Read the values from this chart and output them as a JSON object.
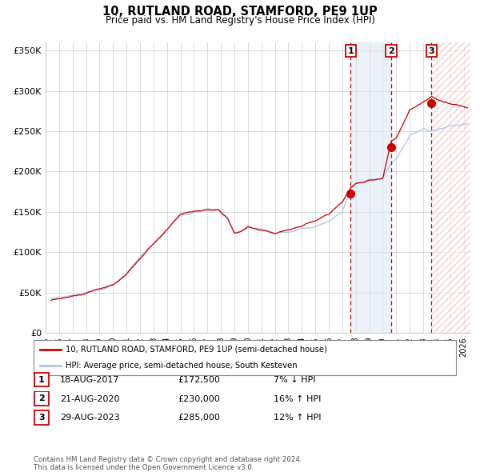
{
  "title": "10, RUTLAND ROAD, STAMFORD, PE9 1UP",
  "subtitle": "Price paid vs. HM Land Registry's House Price Index (HPI)",
  "ylim": [
    0,
    360000
  ],
  "yticks": [
    0,
    50000,
    100000,
    150000,
    200000,
    250000,
    300000,
    350000
  ],
  "ytick_labels": [
    "£0",
    "£50K",
    "£100K",
    "£150K",
    "£200K",
    "£250K",
    "£300K",
    "£350K"
  ],
  "xlim_start": 1995.3,
  "xlim_end": 2026.5,
  "xtick_years": [
    1995,
    1996,
    1997,
    1998,
    1999,
    2000,
    2001,
    2002,
    2003,
    2004,
    2005,
    2006,
    2007,
    2008,
    2009,
    2010,
    2011,
    2012,
    2013,
    2014,
    2015,
    2016,
    2017,
    2018,
    2019,
    2020,
    2021,
    2022,
    2023,
    2024,
    2025,
    2026
  ],
  "hpi_color": "#aec6e8",
  "price_color": "#cc0000",
  "vline_color": "#cc0000",
  "bg_shade_color": "#dce9f5",
  "grid_color": "#cccccc",
  "sale1_x": 2017.62,
  "sale1_y": 172500,
  "sale2_x": 2020.62,
  "sale2_y": 230000,
  "sale3_x": 2023.62,
  "sale3_y": 285000,
  "legend_label_red": "10, RUTLAND ROAD, STAMFORD, PE9 1UP (semi-detached house)",
  "legend_label_blue": "HPI: Average price, semi-detached house, South Kesteven",
  "table_rows": [
    {
      "num": 1,
      "date": "18-AUG-2017",
      "price": "£172,500",
      "change": "7% ↓ HPI"
    },
    {
      "num": 2,
      "date": "21-AUG-2020",
      "price": "£230,000",
      "change": "16% ↑ HPI"
    },
    {
      "num": 3,
      "date": "29-AUG-2023",
      "price": "£285,000",
      "change": "12% ↑ HPI"
    }
  ],
  "footer": "Contains HM Land Registry data © Crown copyright and database right 2024.\nThis data is licensed under the Open Government Licence v3.0.",
  "bg_color": "#ffffff"
}
